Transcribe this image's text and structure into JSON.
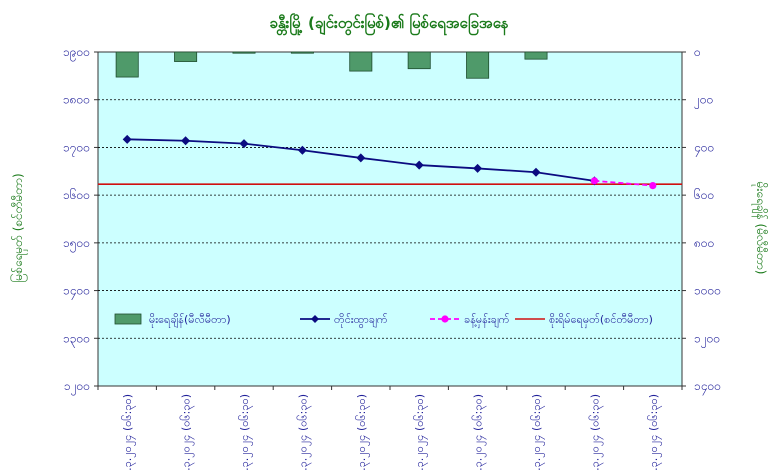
{
  "chart_data": {
    "type": "line",
    "title": "ခန္တီးမြို့ (ချင်းတွင်းမြစ်)၏ မြစ်ရေအခြေအနေ",
    "ylabel_left": "မြစ်ရေမှတ် (စင်တီမီတာ)",
    "ylabel_right": "မိုးရေချိန် (မီလီမီတာ)",
    "categories": [
      "၃.၃.၂၀၂၄ (၀၆:၃၀)",
      "၈.၃.၂၀၂၄ (၀၆:၃၀)",
      "၉.၃.၂၀၂၄ (၀၆:၃၀)",
      "၁၀.၃.၂၀၂၄ (၀၆:၃၀)",
      "၁၁.၃.၂၀၂၄ (၀၆:၃၀)",
      "၁၂.၃.၂၀၂၄ (၀၆:၃၀)",
      "၁၃.၃.၂၀၂၄ (၀၆:၃၀)",
      "၁၄.၃.၂၀၂၄ (၀၆:၃၀)",
      "၁၅.၃.၂၀၂၄ (၀၆:၃၀)",
      "၁၆.၃.၂၀၂၄ (၀၆:၃၀)"
    ],
    "y_left": {
      "min": 1200,
      "max": 1900,
      "step": 100,
      "tick_labels": [
        "၁၂၀၀",
        "၁၃၀၀",
        "၁၄၀၀",
        "၁၅၀၀",
        "၁၆၀၀",
        "၁၇၀၀",
        "၁၈၀၀",
        "၁၉၀၀"
      ]
    },
    "y_right": {
      "min": 0,
      "max": 1400,
      "step": 200,
      "inverted": true,
      "tick_labels": [
        "၀",
        "၂၀၀",
        "၄၀၀",
        "၆၀၀",
        "၈၀၀",
        "၁၀၀၀",
        "၁၂၀၀",
        "၁၄၀၀"
      ]
    },
    "grid": "horizontal",
    "legend_position": "bottom-inside",
    "series": [
      {
        "name": "မိုးရေချိန်(မီလီမီတာ)",
        "type": "bar",
        "axis": "right",
        "color": "#4f9a6a",
        "values": [
          105,
          40,
          5,
          5,
          80,
          70,
          110,
          30,
          null,
          null
        ]
      },
      {
        "name": "တိုင်းထွာချက်",
        "type": "line",
        "axis": "left",
        "color": "#0b0b80",
        "values": [
          1717,
          1714,
          1708,
          1694,
          1678,
          1663,
          1656,
          1648,
          1630,
          null
        ]
      },
      {
        "name": "ခန့်မှန်းချက်",
        "type": "line",
        "axis": "left",
        "color": "#ff00ff",
        "dashed": true,
        "values": [
          null,
          null,
          null,
          null,
          null,
          null,
          null,
          null,
          1630,
          1620
        ]
      },
      {
        "name": "စိုးရိမ်ရေမှတ်(စင်တီမီတာ)",
        "type": "hline",
        "axis": "left",
        "color": "#d01010",
        "value": 1623
      }
    ]
  }
}
